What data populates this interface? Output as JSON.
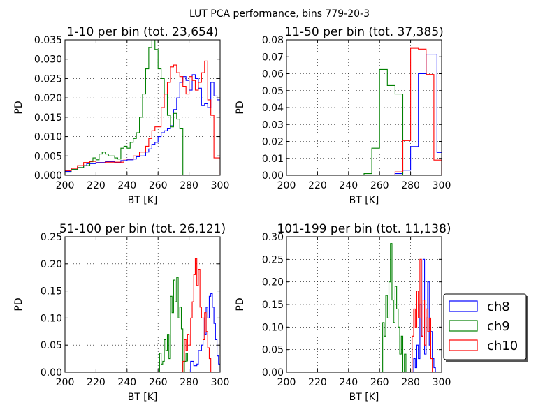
{
  "figure": {
    "suptitle": "LUT PCA performance, bins 779-20-3"
  },
  "colors": {
    "ch8": "#0000ff",
    "ch9": "#008000",
    "ch10": "#ff0000"
  },
  "legend": {
    "placement": "right of lower-right panel",
    "entries": [
      "ch8",
      "ch9",
      "ch10"
    ]
  },
  "chart_data": [
    {
      "type": "histogram",
      "title": "1-10 per bin (tot. 23,654)",
      "xlabel": "BT [K]",
      "ylabel": "PD",
      "xlim": [
        200,
        300
      ],
      "ylim": [
        0,
        0.035
      ],
      "grid": true,
      "xticks": [
        "200",
        "220",
        "240",
        "260",
        "280",
        "300"
      ],
      "yticks": [
        "0.000",
        "0.005",
        "0.010",
        "0.015",
        "0.020",
        "0.025",
        "0.030",
        "0.035"
      ],
      "series": [
        {
          "name": "ch8",
          "points": [
            [
              200,
              0.001
            ],
            [
              204,
              0.0015
            ],
            [
              208,
              0.002
            ],
            [
              212,
              0.0025
            ],
            [
              214,
              0.003
            ],
            [
              220,
              0.0033
            ],
            [
              226,
              0.0035
            ],
            [
              232,
              0.0033
            ],
            [
              236,
              0.0038
            ],
            [
              240,
              0.004
            ],
            [
              244,
              0.0042
            ],
            [
              246,
              0.0048
            ],
            [
              248,
              0.005
            ],
            [
              252,
              0.006
            ],
            [
              254,
              0.0068
            ],
            [
              256,
              0.008
            ],
            [
              258,
              0.0085
            ],
            [
              260,
              0.01
            ],
            [
              262,
              0.011
            ],
            [
              264,
              0.0115
            ],
            [
              266,
              0.012
            ],
            [
              268,
              0.0128
            ],
            [
              270,
              0.017
            ],
            [
              272,
              0.02
            ],
            [
              274,
              0.024
            ],
            [
              276,
              0.0255
            ],
            [
              278,
              0.0245
            ],
            [
              280,
              0.022
            ],
            [
              282,
              0.026
            ],
            [
              284,
              0.025
            ],
            [
              286,
              0.0225
            ],
            [
              288,
              0.018
            ],
            [
              290,
              0.0185
            ],
            [
              292,
              0.0175
            ],
            [
              294,
              0.024
            ],
            [
              296,
              0.0205
            ],
            [
              298,
              0.0195
            ],
            [
              300,
              0.016
            ]
          ]
        },
        {
          "name": "ch9",
          "points": [
            [
              200,
              0.0008
            ],
            [
              204,
              0.0015
            ],
            [
              208,
              0.002
            ],
            [
              212,
              0.0025
            ],
            [
              216,
              0.0035
            ],
            [
              218,
              0.0045
            ],
            [
              220,
              0.004
            ],
            [
              222,
              0.0055
            ],
            [
              224,
              0.006
            ],
            [
              226,
              0.0055
            ],
            [
              228,
              0.005
            ],
            [
              230,
              0.005
            ],
            [
              232,
              0.0045
            ],
            [
              234,
              0.0042
            ],
            [
              236,
              0.007
            ],
            [
              238,
              0.0075
            ],
            [
              240,
              0.007
            ],
            [
              242,
              0.0085
            ],
            [
              244,
              0.0095
            ],
            [
              246,
              0.011
            ],
            [
              248,
              0.015
            ],
            [
              250,
              0.021
            ],
            [
              252,
              0.0275
            ],
            [
              254,
              0.033
            ],
            [
              256,
              0.036
            ],
            [
              258,
              0.0325
            ],
            [
              260,
              0.0275
            ],
            [
              262,
              0.025
            ],
            [
              264,
              0.021
            ],
            [
              266,
              0.0155
            ],
            [
              268,
              0.0125
            ],
            [
              270,
              0.016
            ],
            [
              272,
              0.0145
            ],
            [
              274,
              0.012
            ],
            [
              276,
              0.0
            ],
            [
              278,
              0.0
            ]
          ]
        },
        {
          "name": "ch10",
          "points": [
            [
              200,
              0.0012
            ],
            [
              204,
              0.0018
            ],
            [
              208,
              0.0025
            ],
            [
              212,
              0.0033
            ],
            [
              216,
              0.0036
            ],
            [
              220,
              0.0032
            ],
            [
              226,
              0.0034
            ],
            [
              232,
              0.0034
            ],
            [
              238,
              0.0042
            ],
            [
              244,
              0.005
            ],
            [
              248,
              0.006
            ],
            [
              252,
              0.0075
            ],
            [
              254,
              0.0095
            ],
            [
              256,
              0.0115
            ],
            [
              258,
              0.0125
            ],
            [
              262,
              0.0175
            ],
            [
              264,
              0.021
            ],
            [
              266,
              0.024
            ],
            [
              268,
              0.028
            ],
            [
              270,
              0.0285
            ],
            [
              272,
              0.0265
            ],
            [
              274,
              0.0255
            ],
            [
              276,
              0.023
            ],
            [
              278,
              0.021
            ],
            [
              280,
              0.0255
            ],
            [
              282,
              0.0245
            ],
            [
              284,
              0.022
            ],
            [
              286,
              0.024
            ],
            [
              288,
              0.0265
            ],
            [
              290,
              0.0295
            ],
            [
              292,
              0.0195
            ],
            [
              294,
              0.0155
            ],
            [
              296,
              0.0045
            ],
            [
              298,
              0.0045
            ],
            [
              300,
              0.0
            ]
          ]
        }
      ]
    },
    {
      "type": "histogram",
      "title": "11-50 per bin (tot. 37,385)",
      "xlabel": "BT [K]",
      "ylabel": "PD",
      "xlim": [
        200,
        300
      ],
      "ylim": [
        0,
        0.08
      ],
      "grid": true,
      "xticks": [
        "200",
        "220",
        "240",
        "260",
        "280",
        "300"
      ],
      "yticks": [
        "0.00",
        "0.01",
        "0.02",
        "0.03",
        "0.04",
        "0.05",
        "0.06",
        "0.07",
        "0.08"
      ],
      "series": [
        {
          "name": "ch8",
          "points": [
            [
              200,
              0.0
            ],
            [
              265,
              0.0
            ],
            [
              270,
              0.001
            ],
            [
              275,
              0.003
            ],
            [
              280,
              0.017
            ],
            [
              285,
              0.06
            ],
            [
              290,
              0.0715
            ],
            [
              297,
              0.0135
            ],
            [
              300,
              0.0135
            ]
          ]
        },
        {
          "name": "ch9",
          "points": [
            [
              200,
              0.0
            ],
            [
              245,
              0.0
            ],
            [
              250,
              0.001
            ],
            [
              255,
              0.016
            ],
            [
              260,
              0.0625
            ],
            [
              265,
              0.053
            ],
            [
              270,
              0.048
            ],
            [
              275,
              0.0
            ]
          ]
        },
        {
          "name": "ch10",
          "points": [
            [
              200,
              0.0
            ],
            [
              265,
              0.0
            ],
            [
              270,
              0.002
            ],
            [
              275,
              0.0205
            ],
            [
              280,
              0.075
            ],
            [
              285,
              0.0745
            ],
            [
              290,
              0.0595
            ],
            [
              295,
              0.009
            ],
            [
              300,
              0.0
            ]
          ]
        }
      ]
    },
    {
      "type": "histogram",
      "title": "51-100 per bin (tot. 26,121)",
      "xlabel": "BT [K]",
      "ylabel": "PD",
      "xlim": [
        200,
        300
      ],
      "ylim": [
        0,
        0.25
      ],
      "grid": true,
      "xticks": [
        "200",
        "220",
        "240",
        "260",
        "280",
        "300"
      ],
      "yticks": [
        "0.00",
        "0.05",
        "0.10",
        "0.15",
        "0.20",
        "0.25"
      ],
      "series": [
        {
          "name": "ch8",
          "points": [
            [
              279,
              0.0
            ],
            [
              281,
              0.02
            ],
            [
              283,
              0.012
            ],
            [
              285,
              0.015
            ],
            [
              286,
              0.04
            ],
            [
              288,
              0.05
            ],
            [
              289,
              0.1
            ],
            [
              290,
              0.07
            ],
            [
              291,
              0.12
            ],
            [
              292,
              0.1
            ],
            [
              293,
              0.14
            ],
            [
              294,
              0.145
            ],
            [
              295,
              0.12
            ],
            [
              296,
              0.09
            ],
            [
              297,
              0.06
            ],
            [
              298,
              0.03
            ],
            [
              299,
              0.015
            ],
            [
              300,
              0.0
            ]
          ]
        },
        {
          "name": "ch9",
          "points": [
            [
              260,
              0.0
            ],
            [
              261,
              0.035
            ],
            [
              262,
              0.015
            ],
            [
              263,
              0.02
            ],
            [
              264,
              0.06
            ],
            [
              265,
              0.04
            ],
            [
              266,
              0.07
            ],
            [
              267,
              0.025
            ],
            [
              268,
              0.14
            ],
            [
              269,
              0.11
            ],
            [
              270,
              0.17
            ],
            [
              271,
              0.13
            ],
            [
              272,
              0.175
            ],
            [
              273,
              0.1
            ],
            [
              274,
              0.12
            ],
            [
              275,
              0.08
            ],
            [
              276,
              0.0
            ],
            [
              277,
              0.02
            ],
            [
              278,
              0.035
            ],
            [
              279,
              0.02
            ]
          ]
        },
        {
          "name": "ch10",
          "points": [
            [
              275,
              0.0
            ],
            [
              276,
              0.02
            ],
            [
              277,
              0.06
            ],
            [
              278,
              0.04
            ],
            [
              279,
              0.07
            ],
            [
              280,
              0.05
            ],
            [
              281,
              0.1
            ],
            [
              282,
              0.13
            ],
            [
              283,
              0.18
            ],
            [
              284,
              0.21
            ],
            [
              285,
              0.16
            ],
            [
              286,
              0.19
            ],
            [
              287,
              0.12
            ],
            [
              288,
              0.1
            ],
            [
              289,
              0.06
            ],
            [
              290,
              0.11
            ],
            [
              291,
              0.075
            ],
            [
              292,
              0.045
            ],
            [
              293,
              0.025
            ],
            [
              294,
              0.0
            ]
          ]
        }
      ]
    },
    {
      "type": "histogram",
      "title": "101-199 per bin (tot. 11,138)",
      "xlabel": "BT [K]",
      "ylabel": "PD",
      "xlim": [
        200,
        300
      ],
      "ylim": [
        0,
        0.3
      ],
      "grid": true,
      "xticks": [
        "200",
        "220",
        "240",
        "260",
        "280",
        "300"
      ],
      "yticks": [
        "0.00",
        "0.05",
        "0.10",
        "0.15",
        "0.20",
        "0.25",
        "0.30"
      ],
      "series": [
        {
          "name": "ch8",
          "points": [
            [
              281,
              0.0
            ],
            [
              282,
              0.03
            ],
            [
              283,
              0.01
            ],
            [
              284,
              0.06
            ],
            [
              285,
              0.03
            ],
            [
              286,
              0.15
            ],
            [
              287,
              0.08
            ],
            [
              288,
              0.25
            ],
            [
              289,
              0.04
            ],
            [
              290,
              0.12
            ],
            [
              291,
              0.2
            ],
            [
              292,
              0.06
            ],
            [
              293,
              0.09
            ],
            [
              294,
              0.03
            ],
            [
              295,
              0.01
            ],
            [
              296,
              0.0
            ]
          ]
        },
        {
          "name": "ch9",
          "points": [
            [
              261,
              0.0
            ],
            [
              262,
              0.11
            ],
            [
              263,
              0.08
            ],
            [
              264,
              0.17
            ],
            [
              265,
              0.12
            ],
            [
              266,
              0.2
            ],
            [
              267,
              0.285
            ],
            [
              268,
              0.16
            ],
            [
              269,
              0.11
            ],
            [
              270,
              0.19
            ],
            [
              271,
              0.14
            ],
            [
              272,
              0.1
            ],
            [
              273,
              0.04
            ],
            [
              274,
              0.08
            ],
            [
              275,
              0.0
            ],
            [
              276,
              0.04
            ],
            [
              277,
              0.0
            ]
          ]
        },
        {
          "name": "ch10",
          "points": [
            [
              280,
              0.0
            ],
            [
              281,
              0.08
            ],
            [
              282,
              0.14
            ],
            [
              283,
              0.1
            ],
            [
              284,
              0.18
            ],
            [
              285,
              0.12
            ],
            [
              286,
              0.25
            ],
            [
              287,
              0.08
            ],
            [
              288,
              0.16
            ],
            [
              289,
              0.06
            ],
            [
              290,
              0.14
            ],
            [
              291,
              0.09
            ],
            [
              292,
              0.12
            ],
            [
              293,
              0.03
            ],
            [
              294,
              0.0
            ]
          ]
        }
      ]
    }
  ]
}
